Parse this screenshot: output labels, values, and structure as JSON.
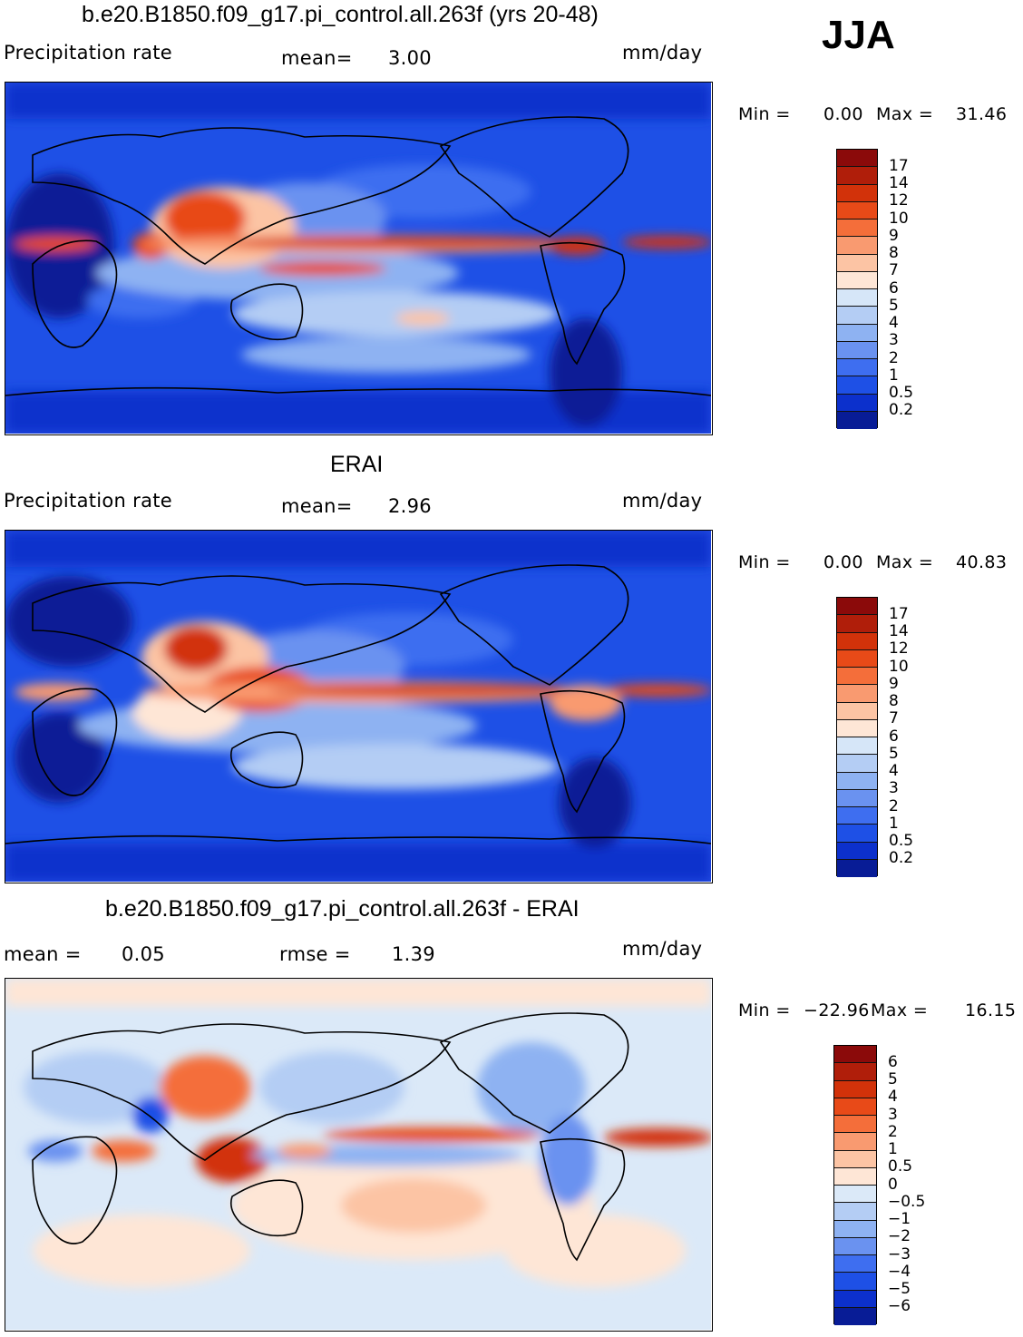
{
  "season": "JJA",
  "panels": [
    {
      "title": "b.e20.B1850.f09_g17.pi_control.all.263f (yrs 20-48)",
      "left_label": "Precipitation  rate",
      "center_label": "mean=",
      "center_value": "3.00",
      "units": "mm/day",
      "min_label": "Min  =",
      "min_value": "0.00",
      "max_label": "Max  =",
      "max_value": "31.46",
      "colorbar": {
        "ticks": [
          "17",
          "14",
          "12",
          "10",
          "9",
          "8",
          "7",
          "6",
          "5",
          "4",
          "3",
          "2",
          "1",
          "0.5",
          "0.2"
        ],
        "colors": [
          "#8b0a0a",
          "#b01e0a",
          "#d2320a",
          "#e84a18",
          "#f46e3a",
          "#f99a70",
          "#fcc4a4",
          "#fee6d6",
          "#d6e6f8",
          "#b4cdf4",
          "#8eb2f2",
          "#6a92f0",
          "#3e6ef0",
          "#1e50e6",
          "#0c30cc",
          "#081c96"
        ]
      }
    },
    {
      "title": "ERAI",
      "left_label": "Precipitation  rate",
      "center_label": "mean=",
      "center_value": "2.96",
      "units": "mm/day",
      "min_label": "Min  =",
      "min_value": "0.00",
      "max_label": "Max  =",
      "max_value": "40.83",
      "colorbar": {
        "ticks": [
          "17",
          "14",
          "12",
          "10",
          "9",
          "8",
          "7",
          "6",
          "5",
          "4",
          "3",
          "2",
          "1",
          "0.5",
          "0.2"
        ],
        "colors": [
          "#8b0a0a",
          "#b01e0a",
          "#d2320a",
          "#e84a18",
          "#f46e3a",
          "#f99a70",
          "#fcc4a4",
          "#fee6d6",
          "#d6e6f8",
          "#b4cdf4",
          "#8eb2f2",
          "#6a92f0",
          "#3e6ef0",
          "#1e50e6",
          "#0c30cc",
          "#081c96"
        ]
      }
    },
    {
      "title": "b.e20.B1850.f09_g17.pi_control.all.263f - ERAI",
      "left_label": "mean  =",
      "left_value": "0.05",
      "center_label": "rmse  =",
      "center_value": "1.39",
      "units": "mm/day",
      "min_label": "Min  =",
      "min_value": "−22.96",
      "max_label": "Max  =",
      "max_value": "16.15",
      "colorbar": {
        "ticks": [
          "6",
          "5",
          "4",
          "3",
          "2",
          "1",
          "0.5",
          "0",
          "−0.5",
          "−1",
          "−2",
          "−3",
          "−4",
          "−5",
          "−6"
        ],
        "colors": [
          "#8b0a0a",
          "#b01e0a",
          "#d2320a",
          "#e84a18",
          "#f46e3a",
          "#f99a70",
          "#fcc4a4",
          "#fee6d6",
          "#dbe9f8",
          "#b4cdf4",
          "#8eb2f2",
          "#6a92f0",
          "#3e6ef0",
          "#1e50e6",
          "#0c30cc",
          "#081c96"
        ]
      }
    }
  ]
}
